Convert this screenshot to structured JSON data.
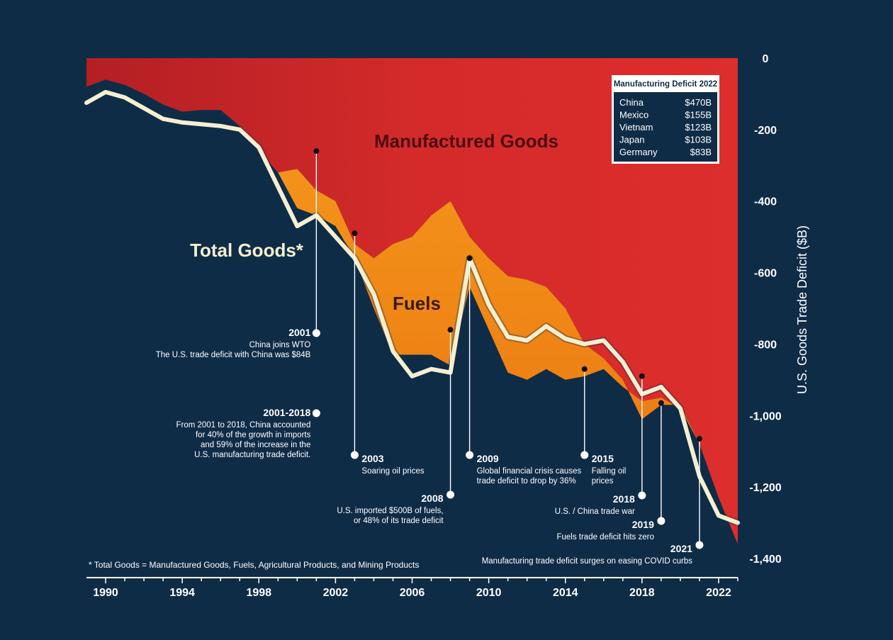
{
  "chart_data": {
    "type": "area",
    "ylabel": "U.S. Goods Trade Deficit ($B)",
    "xlim": [
      1989,
      2023
    ],
    "ylim": [
      -1400,
      0
    ],
    "x_ticks": [
      "1990",
      "1994",
      "1998",
      "2002",
      "2006",
      "2010",
      "2014",
      "2018",
      "2022"
    ],
    "x_tick_values": [
      1990,
      1994,
      1998,
      2002,
      2006,
      2010,
      2014,
      2018,
      2022
    ],
    "y_ticks": [
      "0",
      "-200",
      "-400",
      "-600",
      "-800",
      "-1,000",
      "-1,200",
      "-1,400"
    ],
    "y_tick_values": [
      0,
      -200,
      -400,
      -600,
      -800,
      -1000,
      -1200,
      -1400
    ],
    "x": [
      1989,
      1990,
      1991,
      1992,
      1993,
      1994,
      1995,
      1996,
      1997,
      1998,
      1999,
      2000,
      2001,
      2002,
      2003,
      2004,
      2005,
      2006,
      2007,
      2008,
      2009,
      2010,
      2011,
      2012,
      2013,
      2014,
      2015,
      2016,
      2017,
      2018,
      2019,
      2020,
      2021,
      2022,
      2023
    ],
    "series": [
      {
        "name": "Manufactured Goods",
        "color": "#d42a2a",
        "values": [
          -80,
          -60,
          -75,
          -100,
          -130,
          -150,
          -145,
          -145,
          -190,
          -260,
          -320,
          -310,
          -370,
          -400,
          -520,
          -560,
          -520,
          -500,
          -440,
          -400,
          -500,
          -560,
          -610,
          -620,
          -640,
          -700,
          -800,
          -840,
          -900,
          -1010,
          -970,
          -970,
          -1080,
          -1230,
          -1360
        ]
      },
      {
        "name": "Fuels",
        "color": "#f08010",
        "values": [
          -80,
          -60,
          -75,
          -100,
          -130,
          -150,
          -145,
          -145,
          -190,
          -260,
          -320,
          -420,
          -440,
          -470,
          -560,
          -700,
          -830,
          -830,
          -830,
          -860,
          -640,
          -760,
          -880,
          -900,
          -870,
          -900,
          -890,
          -870,
          -920,
          -960,
          -950,
          -980,
          -1080,
          -1230,
          -1360
        ]
      },
      {
        "name": "Total Goods*",
        "color": "#f5efd0",
        "values": [
          -125,
          -95,
          -110,
          -140,
          -170,
          -180,
          -185,
          -190,
          -200,
          -250,
          -360,
          -470,
          -440,
          -500,
          -560,
          -660,
          -820,
          -890,
          -870,
          -880,
          -560,
          -690,
          -780,
          -790,
          -750,
          -785,
          -800,
          -790,
          -850,
          -940,
          -920,
          -980,
          -1170,
          -1280,
          -1300
        ]
      }
    ],
    "area_labels": {
      "manufactured": "Manufactured Goods",
      "fuels": "Fuels",
      "total": "Total Goods*"
    },
    "inset": {
      "title": "Manufacturing Deficit 2022",
      "rows": [
        {
          "country": "China",
          "value": "$470B"
        },
        {
          "country": "Mexico",
          "value": "$155B"
        },
        {
          "country": "Vietnam",
          "value": "$123B"
        },
        {
          "country": "Japan",
          "value": "$103B"
        },
        {
          "country": "Germany",
          "value": "$83B"
        }
      ]
    },
    "annotations": [
      {
        "id": "2001",
        "year_label": "2001",
        "year_value": 2001,
        "top_value": -260,
        "text": [
          "China joins WTO",
          "The U.S. trade deficit with China was $84B"
        ]
      },
      {
        "id": "2001-2018",
        "year_label": "2001-2018",
        "year_value": 2001,
        "text": [
          "From 2001 to 2018, China accounted",
          "for 40% of the growth in imports",
          "and 59% of the increase in the",
          "U.S. manufacturing trade deficit."
        ]
      },
      {
        "id": "2003",
        "year_label": "2003",
        "year_value": 2003,
        "top_value": -490,
        "text": [
          "Soaring oil prices"
        ]
      },
      {
        "id": "2008",
        "year_label": "2008",
        "year_value": 2008,
        "top_value": -760,
        "text": [
          "U.S. imported $500B of fuels,",
          "or 48% of its trade deficit"
        ]
      },
      {
        "id": "2009",
        "year_label": "2009",
        "year_value": 2009,
        "top_value": -560,
        "text": [
          "Global financial crisis causes",
          "trade deficit to drop by 36%"
        ]
      },
      {
        "id": "2015",
        "year_label": "2015",
        "year_value": 2015,
        "top_value": -870,
        "text": [
          "Falling oil",
          "prices"
        ]
      },
      {
        "id": "2018",
        "year_label": "2018",
        "year_value": 2018,
        "top_value": -890,
        "text": [
          "U.S. / China trade war"
        ]
      },
      {
        "id": "2019",
        "year_label": "2019",
        "year_value": 2019,
        "top_value": -965,
        "text": [
          "Fuels trade deficit hits zero"
        ]
      },
      {
        "id": "2021",
        "year_label": "2021",
        "year_value": 2021,
        "top_value": -1065,
        "text": [
          "Manufacturing trade deficit surges on easing COVID curbs"
        ]
      }
    ],
    "footnote": "* Total Goods = Manufactured Goods, Fuels, Agricultural Products, and Mining Products",
    "colors": {
      "background": "#0f2c47",
      "manufactured": "#d42a2a",
      "fuels": "#f08010",
      "total_line": "#f5efd0",
      "annotation": "#ffffff"
    }
  }
}
